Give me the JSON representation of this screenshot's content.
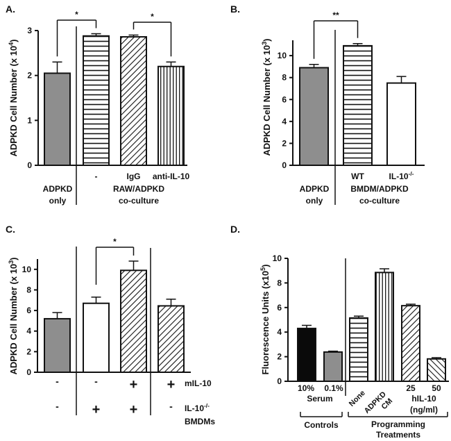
{
  "chart_data": [
    {
      "panel": "A.",
      "type": "bar",
      "ylabel": {
        "text": "ADPKD Cell Number (x 10",
        "sup": "4",
        "after": ")"
      },
      "ylim": [
        0,
        3
      ],
      "yticks": [
        0,
        1,
        2,
        3
      ],
      "values": [
        2.05,
        2.88,
        2.86,
        2.2
      ],
      "errors": [
        0.25,
        0.05,
        0.04,
        0.1
      ],
      "fills": [
        "gray",
        "hlines",
        "diag",
        "vlines"
      ],
      "tick_labels": [
        "",
        "-",
        "IgG",
        "anti-IL-10"
      ],
      "group_labels": [
        [
          "ADPKD",
          "only"
        ],
        [
          "RAW/ADPKD",
          "co-culture"
        ]
      ],
      "significance": [
        {
          "from": 0,
          "to": 1,
          "label": "*"
        },
        {
          "from": 2,
          "to": 3,
          "label": "*"
        }
      ]
    },
    {
      "panel": "B.",
      "type": "bar",
      "ylabel": {
        "text": "ADPKD Cell Number (x 10",
        "sup": "3",
        "after": ")"
      },
      "ylim": [
        0,
        11.4
      ],
      "yticks": [
        0,
        2,
        4,
        6,
        8,
        10
      ],
      "values": [
        8.9,
        10.9,
        7.5
      ],
      "errors": [
        0.3,
        0.2,
        0.6
      ],
      "fills": [
        "gray",
        "hlines",
        "white"
      ],
      "tick_labels": [
        "",
        "WT",
        {
          "text": "IL-10",
          "sup": "-/-"
        }
      ],
      "group_labels": [
        [
          "ADPKD",
          "only"
        ],
        [
          "BMDM/ADPKD",
          "co-culture"
        ]
      ],
      "significance": [
        {
          "from": 0,
          "to": 1,
          "label": "**"
        }
      ]
    },
    {
      "panel": "C.",
      "type": "bar",
      "ylabel": {
        "text": "ADPKD Cell Number (x 10",
        "sup": "3",
        "after": ")"
      },
      "ylim": [
        0,
        11
      ],
      "yticks": [
        0,
        2,
        4,
        6,
        8,
        10
      ],
      "values": [
        5.2,
        6.7,
        9.9,
        6.45
      ],
      "errors": [
        0.6,
        0.6,
        0.9,
        0.65
      ],
      "fills": [
        "gray",
        "white",
        "diag",
        "diag"
      ],
      "conditions": [
        {
          "label": [
            "mIL-10"
          ],
          "marks": [
            "-",
            "-",
            "+",
            "+"
          ]
        },
        {
          "label": [
            {
              "text": "IL-10",
              "sup": "-/-"
            },
            "BMDMs"
          ],
          "marks": [
            "-",
            "+",
            "+",
            "-"
          ]
        }
      ],
      "significance": [
        {
          "from": 1,
          "to": 2,
          "label": "*"
        }
      ]
    },
    {
      "panel": "D.",
      "type": "bar",
      "ylabel": {
        "text": "Fluorescence Units (x10",
        "sup": "5",
        "after": ")"
      },
      "ylim": [
        0,
        10
      ],
      "yticks": [
        0,
        2,
        4,
        6,
        8,
        10
      ],
      "values": [
        4.3,
        2.38,
        5.15,
        8.85,
        6.15,
        1.82
      ],
      "errors": [
        0.25,
        0.07,
        0.15,
        0.3,
        0.12,
        0.1
      ],
      "fills": [
        "black",
        "gray",
        "hlines",
        "vlines",
        "diag",
        "diag-rev"
      ],
      "tick_labels": [
        "10%",
        "0.1%",
        "None",
        [
          "ADPKD",
          "CM"
        ],
        "25",
        "50"
      ],
      "sub_labels": [
        "Serum",
        [
          "hIL-10",
          "(ng/ml)"
        ]
      ],
      "group_labels": [
        "Controls",
        [
          "Programming",
          "Treatments"
        ]
      ]
    }
  ],
  "colors": {
    "gray": "#8e8e8e",
    "black": "#0a0a0a",
    "ink": "#111111"
  }
}
